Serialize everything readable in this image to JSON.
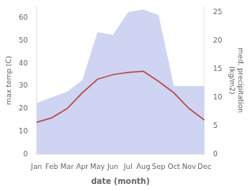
{
  "chart_data": {
    "type": "line",
    "categories": [
      "Jan",
      "Feb",
      "Mar",
      "Apr",
      "May",
      "Jun",
      "Jul",
      "Aug",
      "Sep",
      "Oct",
      "Nov",
      "Dec"
    ],
    "series": [
      {
        "type": "area",
        "axis": "y2",
        "color": "#c5ccee",
        "values": [
          9.0,
          10.0,
          11.0,
          13.0,
          21.5,
          21.0,
          25.0,
          25.5,
          24.5,
          12.0,
          12.0,
          12.0
        ]
      },
      {
        "type": "line",
        "color": "#b84040",
        "values": [
          14.0,
          16.0,
          20.0,
          27.0,
          33.0,
          35.0,
          36.0,
          36.5,
          32.0,
          27.0,
          20.0,
          15.0
        ]
      }
    ],
    "xlabel": "date (month)",
    "ylabel": "max temp (C)",
    "y2label": "med. precipitation\n(kg/m2)",
    "ylim": [
      0,
      65
    ],
    "yticks": [
      0,
      10,
      20,
      30,
      40,
      50,
      60
    ],
    "y2lim": [
      0,
      26
    ],
    "y2ticks": [
      0,
      5,
      10,
      15,
      20,
      25
    ],
    "grid": false
  }
}
